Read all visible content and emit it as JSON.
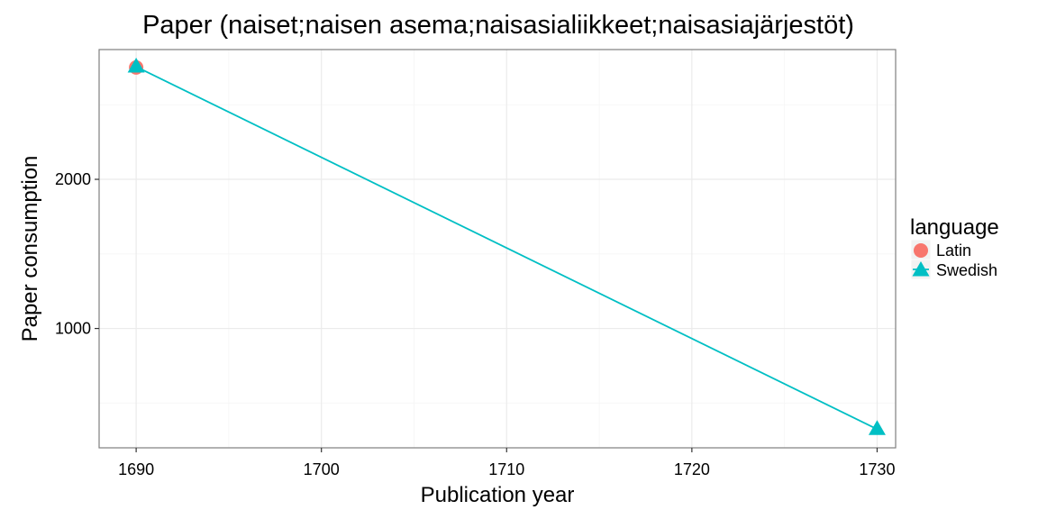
{
  "chart_data": {
    "type": "line",
    "title": "Paper (naiset;naisen asema;naisasialiikkeet;naisasiajärjestöt)",
    "xlabel": "Publication year",
    "ylabel": "Paper consumption",
    "xlim": [
      1688,
      1731
    ],
    "ylim": [
      200,
      2870
    ],
    "x_ticks": [
      1690,
      1700,
      1710,
      1720,
      1730
    ],
    "y_ticks": [
      1000,
      2000
    ],
    "grid": true,
    "legend": {
      "title": "language",
      "position": "right"
    },
    "series": [
      {
        "name": "Latin",
        "color": "#F8766D",
        "marker": "circle",
        "x": [
          1690
        ],
        "y": [
          2750
        ]
      },
      {
        "name": "Swedish",
        "color": "#00BFC4",
        "marker": "triangle",
        "x": [
          1690,
          1730
        ],
        "y": [
          2755,
          325
        ]
      }
    ]
  }
}
